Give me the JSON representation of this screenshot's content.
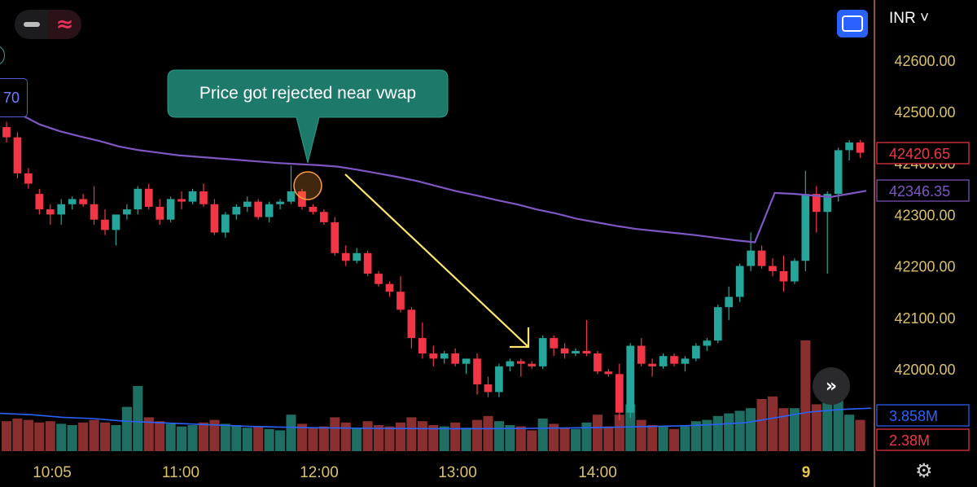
{
  "toolbar": {
    "currency_label": "INR ˅"
  },
  "left_tag": {
    "text": "70"
  },
  "chart_data": {
    "type": "candlestick",
    "annotation": "Price got rejected near vwap",
    "price_axis": {
      "ticks": [
        "42600.00",
        "42500.00",
        "42400.00",
        "42300.00",
        "42200.00",
        "42100.00",
        "42000.00"
      ],
      "tick_values": [
        42600,
        42500,
        42400,
        42300,
        42200,
        42100,
        42000
      ],
      "ylim": [
        41950,
        42660
      ]
    },
    "time_axis": {
      "labels": [
        "10:05",
        "11:00",
        "12:00",
        "13:00",
        "14:00",
        "9"
      ]
    },
    "price_labels": [
      {
        "text": "42420.65",
        "value": 42420.65,
        "color": "#f23645"
      },
      {
        "text": "42346.35",
        "value": 42346.35,
        "color": "#7e57c2"
      }
    ],
    "volume_labels": [
      {
        "text": "3.858M",
        "color": "#2962ff"
      },
      {
        "text": "2.38M",
        "color": "#f23645"
      }
    ],
    "candles": [
      [
        42470,
        42480,
        42440,
        42450
      ],
      [
        42450,
        42460,
        42370,
        42380
      ],
      [
        42380,
        42390,
        42350,
        42360
      ],
      [
        42340,
        42350,
        42300,
        42310
      ],
      [
        42310,
        42320,
        42280,
        42300
      ],
      [
        42300,
        42330,
        42280,
        42320
      ],
      [
        42320,
        42335,
        42310,
        42330
      ],
      [
        42330,
        42340,
        42315,
        42320
      ],
      [
        42320,
        42355,
        42280,
        42290
      ],
      [
        42290,
        42310,
        42260,
        42270
      ],
      [
        42270,
        42300,
        42240,
        42300
      ],
      [
        42300,
        42320,
        42290,
        42310
      ],
      [
        42310,
        42355,
        42300,
        42350
      ],
      [
        42350,
        42360,
        42310,
        42315
      ],
      [
        42315,
        42330,
        42280,
        42290
      ],
      [
        42290,
        42335,
        42285,
        42330
      ],
      [
        42330,
        42345,
        42310,
        42325
      ],
      [
        42325,
        42350,
        42320,
        42345
      ],
      [
        42345,
        42360,
        42315,
        42320
      ],
      [
        42320,
        42330,
        42260,
        42265
      ],
      [
        42265,
        42305,
        42255,
        42300
      ],
      [
        42300,
        42320,
        42290,
        42315
      ],
      [
        42315,
        42335,
        42305,
        42325
      ],
      [
        42325,
        42330,
        42290,
        42295
      ],
      [
        42295,
        42325,
        42285,
        42320
      ],
      [
        42320,
        42330,
        42310,
        42325
      ],
      [
        42325,
        42395,
        42320,
        42345
      ],
      [
        42345,
        42350,
        42310,
        42315
      ],
      [
        42315,
        42320,
        42300,
        42305
      ],
      [
        42305,
        42310,
        42280,
        42285
      ],
      [
        42285,
        42295,
        42220,
        42225
      ],
      [
        42225,
        42240,
        42200,
        42210
      ],
      [
        42210,
        42235,
        42205,
        42225
      ],
      [
        42225,
        42230,
        42180,
        42185
      ],
      [
        42185,
        42190,
        42160,
        42165
      ],
      [
        42165,
        42170,
        42140,
        42150
      ],
      [
        42150,
        42180,
        42110,
        42115
      ],
      [
        42115,
        42120,
        42040,
        42060
      ],
      [
        42060,
        42090,
        42020,
        42030
      ],
      [
        42030,
        42045,
        42005,
        42020
      ],
      [
        42020,
        42035,
        42010,
        42030
      ],
      [
        42030,
        42040,
        42005,
        42010
      ],
      [
        42010,
        42015,
        41990,
        42020
      ],
      [
        42020,
        42030,
        41950,
        41970
      ],
      [
        41970,
        41985,
        41945,
        41955
      ],
      [
        41955,
        42010,
        41945,
        42005
      ],
      [
        42005,
        42020,
        41995,
        42015
      ],
      [
        42015,
        42020,
        41985,
        42010
      ],
      [
        42010,
        42015,
        42000,
        42005
      ],
      [
        42005,
        42065,
        42000,
        42060
      ],
      [
        42060,
        42065,
        42025,
        42040
      ],
      [
        42040,
        42050,
        42020,
        42030
      ],
      [
        42030,
        42040,
        42025,
        42035
      ],
      [
        42035,
        42095,
        42025,
        42030
      ],
      [
        42030,
        42035,
        41990,
        41995
      ],
      [
        41995,
        42000,
        41985,
        41990
      ],
      [
        41990,
        42010,
        41900,
        41915
      ],
      [
        41915,
        42050,
        41905,
        42045
      ],
      [
        42045,
        42060,
        42005,
        42010
      ],
      [
        42010,
        42020,
        41985,
        42005
      ],
      [
        42005,
        42030,
        42000,
        42025
      ],
      [
        42025,
        42030,
        42005,
        42010
      ],
      [
        42010,
        42025,
        41995,
        42020
      ],
      [
        42020,
        42050,
        42015,
        42045
      ],
      [
        42045,
        42060,
        42035,
        42055
      ],
      [
        42055,
        42125,
        42050,
        42120
      ],
      [
        42120,
        42160,
        42095,
        42140
      ],
      [
        42140,
        42205,
        42130,
        42200
      ],
      [
        42200,
        42265,
        42190,
        42230
      ],
      [
        42230,
        42240,
        42195,
        42200
      ],
      [
        42200,
        42215,
        42180,
        42190
      ],
      [
        42190,
        42220,
        42150,
        42170
      ],
      [
        42170,
        42215,
        42165,
        42210
      ],
      [
        42210,
        42385,
        42190,
        42340
      ],
      [
        42340,
        42355,
        42265,
        42305
      ],
      [
        42305,
        42345,
        42185,
        42340
      ],
      [
        42340,
        42430,
        42325,
        42425
      ],
      [
        42425,
        42445,
        42405,
        42440
      ],
      [
        42440,
        42445,
        42410,
        42420
      ]
    ],
    "volume": [
      [
        2.3,
        "r"
      ],
      [
        2.5,
        "r"
      ],
      [
        2.4,
        "r"
      ],
      [
        2.2,
        "r"
      ],
      [
        2.3,
        "r"
      ],
      [
        2.1,
        "g"
      ],
      [
        2.0,
        "g"
      ],
      [
        2.2,
        "r"
      ],
      [
        2.4,
        "r"
      ],
      [
        2.2,
        "r"
      ],
      [
        2.0,
        "g"
      ],
      [
        3.4,
        "g"
      ],
      [
        5.0,
        "g"
      ],
      [
        2.6,
        "r"
      ],
      [
        2.3,
        "r"
      ],
      [
        2.1,
        "g"
      ],
      [
        1.9,
        "g"
      ],
      [
        2.0,
        "g"
      ],
      [
        2.2,
        "r"
      ],
      [
        2.4,
        "r"
      ],
      [
        2.1,
        "g"
      ],
      [
        2.0,
        "g"
      ],
      [
        1.8,
        "g"
      ],
      [
        1.9,
        "r"
      ],
      [
        1.7,
        "g"
      ],
      [
        1.6,
        "g"
      ],
      [
        2.8,
        "g"
      ],
      [
        2.1,
        "r"
      ],
      [
        1.8,
        "r"
      ],
      [
        1.9,
        "r"
      ],
      [
        2.6,
        "r"
      ],
      [
        2.2,
        "r"
      ],
      [
        1.8,
        "g"
      ],
      [
        2.3,
        "r"
      ],
      [
        2.0,
        "r"
      ],
      [
        1.9,
        "r"
      ],
      [
        2.2,
        "r"
      ],
      [
        2.6,
        "r"
      ],
      [
        2.3,
        "r"
      ],
      [
        2.0,
        "r"
      ],
      [
        1.9,
        "g"
      ],
      [
        2.2,
        "r"
      ],
      [
        1.8,
        "g"
      ],
      [
        2.4,
        "r"
      ],
      [
        2.7,
        "r"
      ],
      [
        2.3,
        "g"
      ],
      [
        2.0,
        "g"
      ],
      [
        1.9,
        "r"
      ],
      [
        1.6,
        "r"
      ],
      [
        2.5,
        "g"
      ],
      [
        2.1,
        "r"
      ],
      [
        1.8,
        "r"
      ],
      [
        1.7,
        "g"
      ],
      [
        2.2,
        "g"
      ],
      [
        2.8,
        "r"
      ],
      [
        1.9,
        "r"
      ],
      [
        2.8,
        "r"
      ],
      [
        3.6,
        "g"
      ],
      [
        2.4,
        "r"
      ],
      [
        2.0,
        "r"
      ],
      [
        1.9,
        "g"
      ],
      [
        1.7,
        "r"
      ],
      [
        1.9,
        "g"
      ],
      [
        2.3,
        "g"
      ],
      [
        2.4,
        "g"
      ],
      [
        2.7,
        "g"
      ],
      [
        2.9,
        "g"
      ],
      [
        3.1,
        "g"
      ],
      [
        3.3,
        "g"
      ],
      [
        4.0,
        "r"
      ],
      [
        4.2,
        "r"
      ],
      [
        3.3,
        "r"
      ],
      [
        3.3,
        "g"
      ],
      [
        8.5,
        "r"
      ],
      [
        3.6,
        "r"
      ],
      [
        4.5,
        "g"
      ],
      [
        4.5,
        "g"
      ],
      [
        2.8,
        "g"
      ],
      [
        2.4,
        "r"
      ]
    ],
    "vwap": [
      42510,
      42495,
      42475,
      42462,
      42452,
      42443,
      42432,
      42425,
      42420,
      42415,
      42412,
      42409,
      42406,
      42403,
      42400,
      42398,
      42396,
      42393,
      42387,
      42380,
      42373,
      42365,
      42355,
      42345,
      42337,
      42328,
      42320,
      42310,
      42302,
      42292,
      42285,
      42278,
      42272,
      42268,
      42264,
      42260,
      42255,
      42250,
      42246,
      42342,
      42340,
      42337,
      42334,
      42340,
      42346
    ],
    "volume_ma": [
      2.9,
      2.8,
      2.6,
      2.5,
      2.3,
      2.2,
      2.1,
      2.0,
      1.9,
      1.85,
      1.8,
      1.78,
      1.75,
      1.74,
      1.72,
      1.72,
      1.73,
      1.75,
      1.78,
      1.8,
      1.85,
      1.9,
      1.95,
      2.05,
      2.2,
      2.6,
      3.0,
      3.2,
      3.3
    ],
    "colors": {
      "up": "#26a69a",
      "down": "#f23645",
      "vwap": "#7e57c2",
      "volume_ma": "#2962ff",
      "trend_arrow": "#ffe66d",
      "callout": "#1d7a6a"
    }
  }
}
